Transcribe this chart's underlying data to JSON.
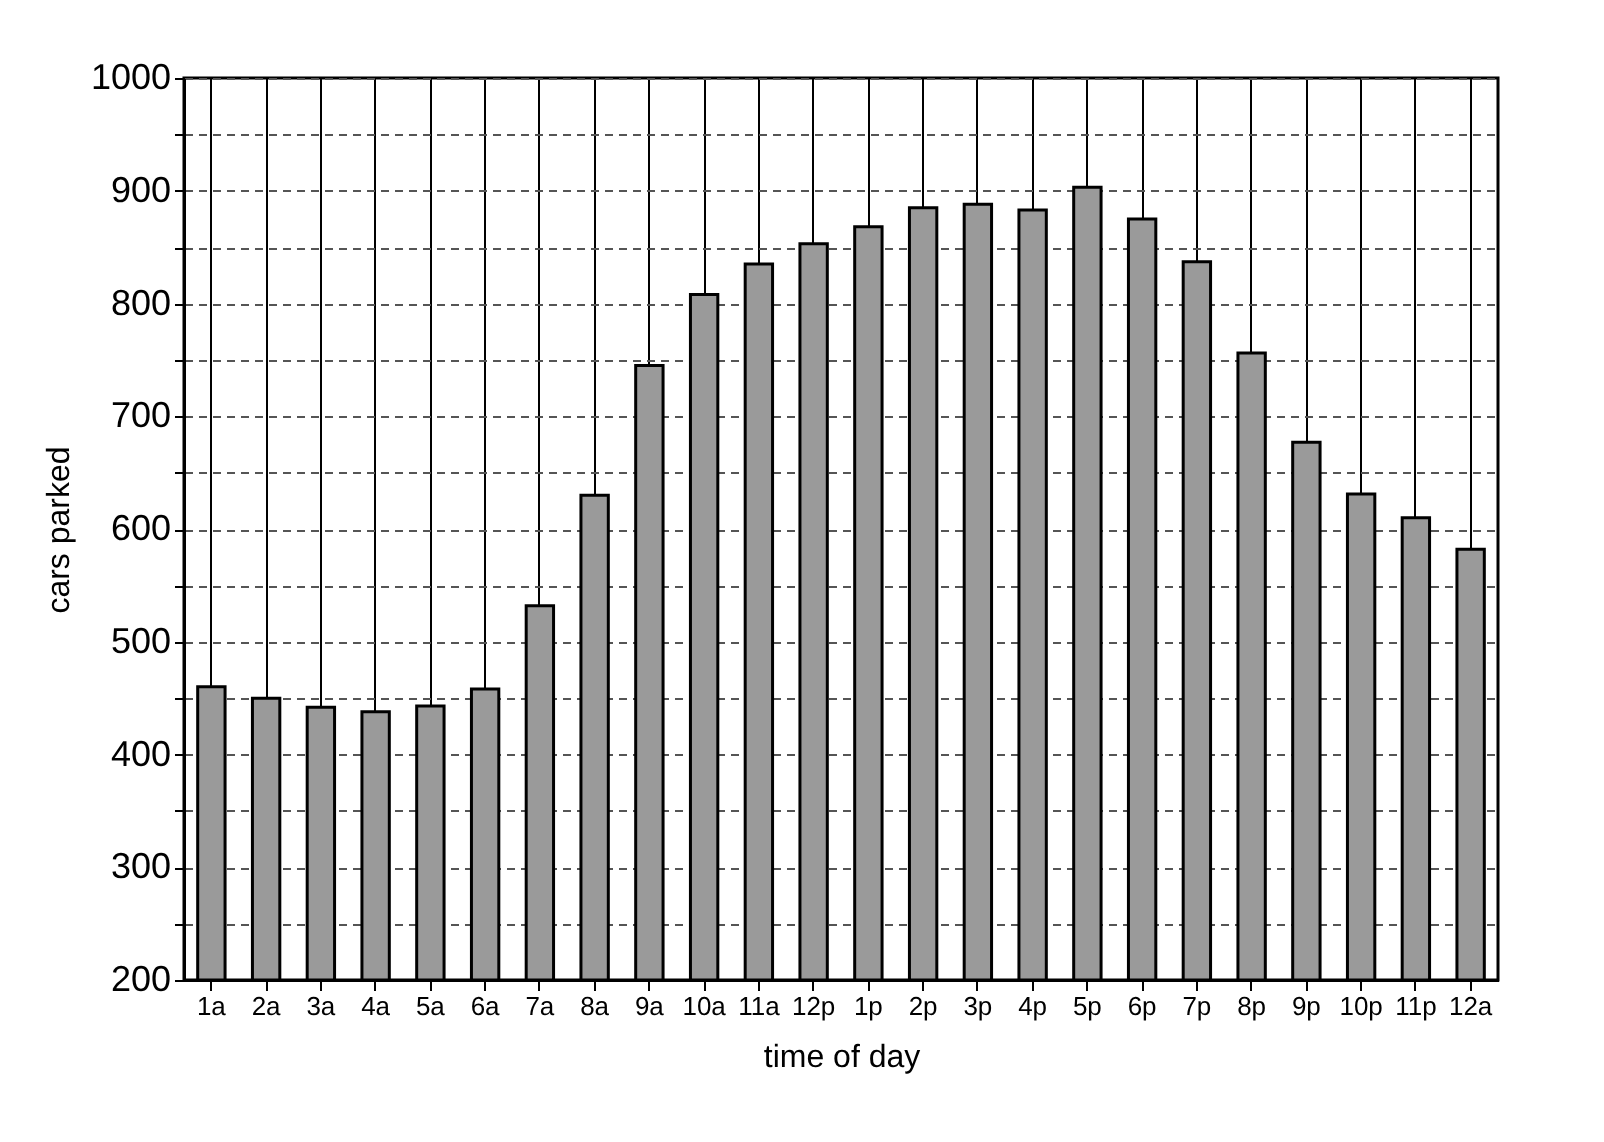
{
  "chart_data": {
    "type": "bar",
    "xlabel": "time of day",
    "ylabel": "cars parked",
    "categories": [
      "1a",
      "2a",
      "3a",
      "4a",
      "5a",
      "6a",
      "7a",
      "8a",
      "9a",
      "10a",
      "11a",
      "12p",
      "1p",
      "2p",
      "3p",
      "4p",
      "5p",
      "6p",
      "7p",
      "8p",
      "9p",
      "10p",
      "11p",
      "12a"
    ],
    "values": [
      460,
      450,
      442,
      438,
      443,
      458,
      532,
      630,
      745,
      808,
      835,
      853,
      868,
      885,
      888,
      883,
      903,
      875,
      837,
      756,
      677,
      631,
      610,
      582
    ],
    "color": "#9a9a9a",
    "ylim": [
      200,
      1000
    ],
    "yticks": [
      200,
      {
        "value": 250,
        "label": null
      },
      300,
      {
        "value": 350,
        "label": null
      },
      400,
      {
        "value": 450,
        "label": null
      },
      500,
      {
        "value": 550,
        "label": null
      },
      600,
      {
        "value": 650,
        "label": null
      },
      700,
      {
        "value": 750,
        "label": null
      },
      800,
      {
        "value": 850,
        "label": null
      },
      900,
      {
        "value": 950,
        "label": null
      },
      1000
    ],
    "grid": true
  }
}
